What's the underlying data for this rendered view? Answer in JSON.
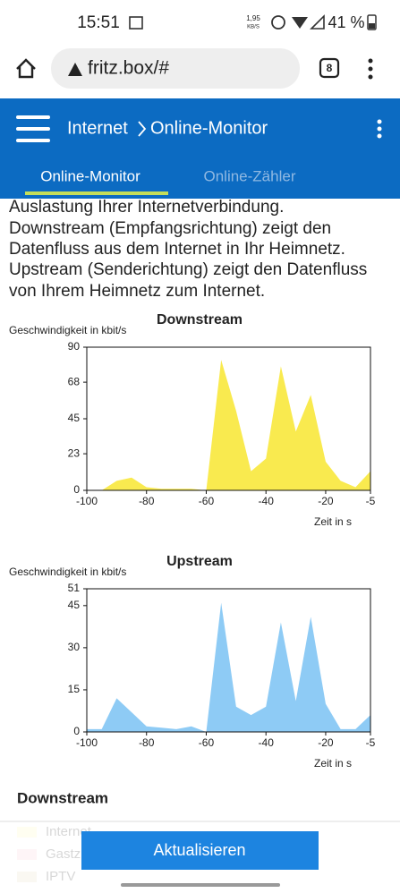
{
  "status_bar": {
    "time": "15:51",
    "speed": "1,95",
    "speed_unit": "KB/S",
    "battery": "41 %"
  },
  "browser": {
    "url": "fritz.box/#",
    "tabs": "8"
  },
  "header": {
    "section": "Internet",
    "page": "Online-Monitor"
  },
  "tabs": [
    "Online-Monitor",
    "Online-Zähler"
  ],
  "intro": [
    "Auslastung Ihrer Internetverbindung.",
    "Downstream (Empfangsrichtung) zeigt den",
    "Datenfluss aus dem Internet in Ihr Heimnetz.",
    "Upstream (Senderichtung) zeigt den Datenfluss",
    "von Ihrem Heimnetz zum Internet."
  ],
  "chart_data": [
    {
      "type": "area",
      "title": "Downstream",
      "y_label": "Geschwindigkeit in kbit/s",
      "x_label": "Zeit in s",
      "color": "#f9ea4f",
      "x": [
        -100,
        -95,
        -90,
        -85,
        -80,
        -75,
        -70,
        -65,
        -60,
        -55,
        -50,
        -45,
        -40,
        -35,
        -30,
        -25,
        -20,
        -15,
        -10,
        -5
      ],
      "values": [
        0,
        0,
        6,
        8,
        2,
        1,
        1,
        1,
        0,
        82,
        50,
        12,
        20,
        78,
        37,
        60,
        18,
        6,
        2,
        12
      ],
      "xlim": [
        -100,
        -5
      ],
      "xticks": [
        -100,
        -80,
        -60,
        -40,
        -20,
        -5
      ],
      "ylim": [
        0,
        90
      ],
      "yticks": [
        0,
        23,
        45,
        68,
        90
      ]
    },
    {
      "type": "area",
      "title": "Upstream",
      "y_label": "Geschwindigkeit in kbit/s",
      "x_label": "Zeit in s",
      "color": "#8ecbf5",
      "x": [
        -100,
        -95,
        -90,
        -85,
        -80,
        -75,
        -70,
        -65,
        -60,
        -55,
        -50,
        -45,
        -40,
        -35,
        -30,
        -25,
        -20,
        -15,
        -10,
        -5
      ],
      "values": [
        1,
        1,
        12,
        7,
        2,
        1.5,
        1,
        2,
        0,
        46,
        9,
        6,
        9,
        39,
        11,
        41,
        10,
        1,
        1,
        6
      ],
      "xlim": [
        -100,
        -5
      ],
      "xticks": [
        -100,
        -80,
        -60,
        -40,
        -20,
        -5
      ],
      "ylim": [
        0,
        51
      ],
      "yticks": [
        0,
        15,
        30,
        45,
        51
      ]
    }
  ],
  "footer": {
    "heading": "Downstream",
    "legend": [
      {
        "name": "Internet",
        "color": "#fff7b0"
      },
      {
        "name": "Gastzugang",
        "color": "#f7c8cf"
      },
      {
        "name": "IPTV",
        "color": "#e3d7b8"
      }
    ],
    "button": "Aktualisieren"
  }
}
